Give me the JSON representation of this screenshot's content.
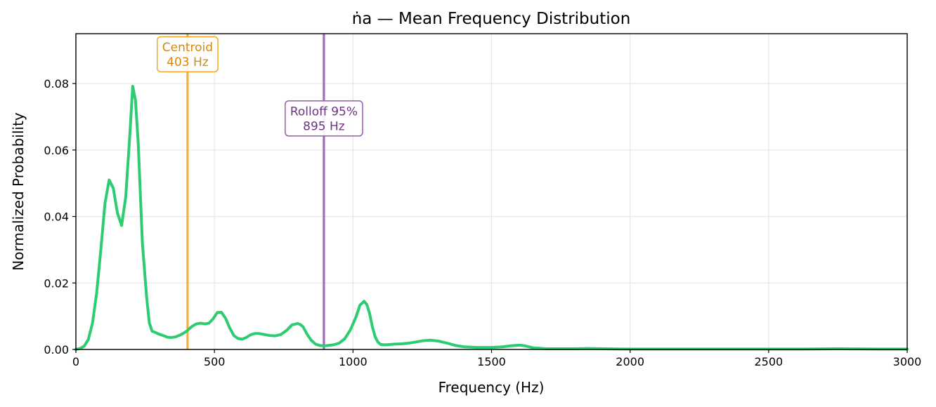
{
  "chart_data": {
    "type": "line",
    "title": "ṅa  —  Mean Frequency Distribution",
    "xlabel": "Frequency (Hz)",
    "ylabel": "Normalized Probability",
    "xlim": [
      0,
      3000
    ],
    "ylim": [
      0,
      0.095
    ],
    "xticks": [
      0,
      500,
      1000,
      1500,
      2000,
      2500,
      3000
    ],
    "yticks": [
      0.0,
      0.02,
      0.04,
      0.06,
      0.08
    ],
    "ytick_labels": [
      "0.00",
      "0.02",
      "0.04",
      "0.06",
      "0.08"
    ],
    "grid": true,
    "series": [
      {
        "color": "#2ecc71",
        "x": [
          0,
          15,
          30,
          45,
          60,
          75,
          90,
          105,
          120,
          135,
          150,
          165,
          180,
          195,
          205,
          215,
          225,
          240,
          255,
          265,
          275,
          290,
          300,
          315,
          330,
          345,
          360,
          375,
          390,
          400,
          410,
          420,
          435,
          450,
          465,
          480,
          495,
          510,
          525,
          540,
          555,
          570,
          585,
          600,
          615,
          630,
          645,
          660,
          680,
          700,
          720,
          740,
          760,
          780,
          800,
          810,
          820,
          835,
          850,
          865,
          880,
          895,
          910,
          930,
          950,
          970,
          990,
          1010,
          1025,
          1040,
          1050,
          1060,
          1070,
          1080,
          1090,
          1100,
          1110,
          1120,
          1135,
          1150,
          1175,
          1200,
          1225,
          1250,
          1280,
          1310,
          1340,
          1370,
          1400,
          1450,
          1500,
          1540,
          1570,
          1600,
          1620,
          1650,
          1700,
          1800,
          1850,
          1900,
          2000,
          2200,
          2400,
          2600,
          2750,
          2900,
          3000
        ],
        "y": [
          0.0,
          0.0003,
          0.001,
          0.003,
          0.008,
          0.017,
          0.03,
          0.044,
          0.051,
          0.0485,
          0.041,
          0.0373,
          0.046,
          0.065,
          0.0792,
          0.075,
          0.062,
          0.032,
          0.016,
          0.008,
          0.0055,
          0.005,
          0.0046,
          0.0042,
          0.0037,
          0.0036,
          0.0038,
          0.0043,
          0.005,
          0.0055,
          0.0063,
          0.007,
          0.0077,
          0.0079,
          0.0077,
          0.0079,
          0.0092,
          0.0111,
          0.0112,
          0.0094,
          0.0065,
          0.0042,
          0.0033,
          0.0031,
          0.0036,
          0.0044,
          0.0048,
          0.0048,
          0.0045,
          0.0042,
          0.0041,
          0.0045,
          0.0057,
          0.0074,
          0.0078,
          0.0075,
          0.0068,
          0.0045,
          0.0027,
          0.0016,
          0.0012,
          0.0011,
          0.0012,
          0.0014,
          0.0019,
          0.0032,
          0.0058,
          0.0096,
          0.0133,
          0.0145,
          0.0135,
          0.0108,
          0.0068,
          0.0038,
          0.0022,
          0.0015,
          0.0014,
          0.0014,
          0.0015,
          0.0016,
          0.0017,
          0.0019,
          0.0022,
          0.0026,
          0.0028,
          0.0025,
          0.0019,
          0.0012,
          0.0008,
          0.0006,
          0.0006,
          0.0008,
          0.0011,
          0.0013,
          0.0011,
          0.0005,
          0.0002,
          0.0002,
          0.0003,
          0.0002,
          0.0001,
          0.0001,
          0.0001,
          0.0001,
          0.0002,
          0.0001,
          0.0001
        ]
      }
    ],
    "annotations": [
      {
        "label": "Centroid\n403 Hz",
        "x": 403,
        "label_y": 0.0888,
        "color": "#f5a623",
        "text_color": "#d4890f"
      },
      {
        "label": "Rolloff 95%\n895 Hz",
        "x": 895,
        "label_y": 0.0695,
        "color": "#9b59b6",
        "text_color": "#6c3483"
      }
    ]
  }
}
